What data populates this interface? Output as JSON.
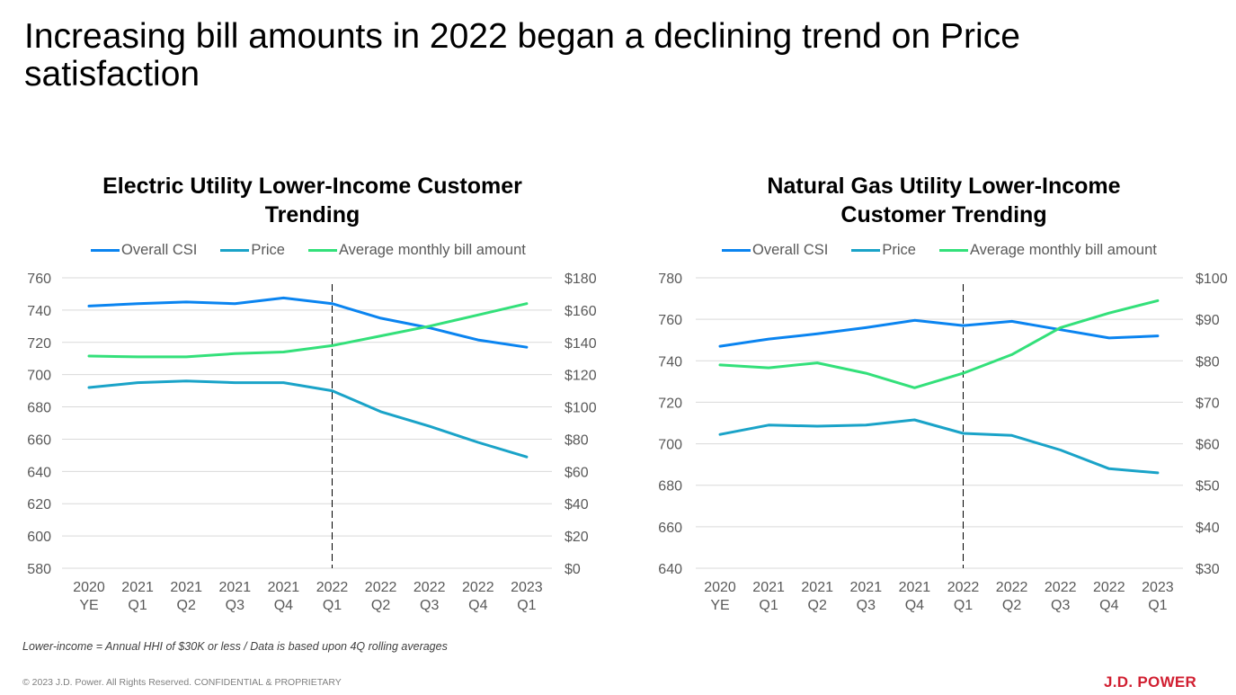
{
  "page": {
    "title": "Increasing bill amounts in 2022 began a declining trend on Price satisfaction",
    "footnote": "Lower-income = Annual HHI of $30K or less / Data is based upon 4Q rolling averages",
    "copyright": "© 2023 J.D. Power. All Rights Reserved. CONFIDENTIAL & PROPRIETARY",
    "logo": "J.D. POWER"
  },
  "colors": {
    "overall_csi": "#0a84f0",
    "price": "#1aa3c8",
    "bill": "#33e07a",
    "grid": "#d9d9d9",
    "logo": "#d11f31"
  },
  "chart_data": [
    {
      "type": "line",
      "title": "Electric Utility Lower-Income Customer Trending",
      "categories": [
        [
          "2020",
          "YE"
        ],
        [
          "2021",
          "Q1"
        ],
        [
          "2021",
          "Q2"
        ],
        [
          "2021",
          "Q3"
        ],
        [
          "2021",
          "Q4"
        ],
        [
          "2022",
          "Q1"
        ],
        [
          "2022",
          "Q2"
        ],
        [
          "2022",
          "Q3"
        ],
        [
          "2022",
          "Q4"
        ],
        [
          "2023",
          "Q1"
        ]
      ],
      "legend": [
        "Overall CSI",
        "Price",
        "Average monthly bill amount"
      ],
      "legend_position": "top",
      "y_left": {
        "min": 580,
        "max": 760,
        "step": 20,
        "ticks": [
          "580",
          "600",
          "620",
          "640",
          "660",
          "680",
          "700",
          "720",
          "740",
          "760"
        ]
      },
      "y_right": {
        "min": 0,
        "max": 180,
        "step": 20,
        "ticks": [
          "$0",
          "$20",
          "$40",
          "$60",
          "$80",
          "$100",
          "$120",
          "$140",
          "$160",
          "$180"
        ]
      },
      "grid": true,
      "reference_line": {
        "category_index": 5,
        "style": "dashed"
      },
      "series": [
        {
          "name": "Overall CSI",
          "axis": "left",
          "color_key": "overall_csi",
          "values": [
            742.5,
            744,
            745,
            744,
            747.5,
            744,
            735,
            729,
            721.5,
            717
          ]
        },
        {
          "name": "Price",
          "axis": "left",
          "color_key": "price",
          "values": [
            692,
            695,
            696,
            695,
            695,
            690,
            677,
            668,
            658,
            649
          ]
        },
        {
          "name": "Average monthly bill amount",
          "axis": "right",
          "color_key": "bill",
          "values": [
            131.5,
            131,
            131,
            133,
            134,
            138,
            144,
            150,
            157,
            164
          ]
        }
      ]
    },
    {
      "type": "line",
      "title": "Natural Gas Utility Lower-Income Customer Trending",
      "categories": [
        [
          "2020",
          "YE"
        ],
        [
          "2021",
          "Q1"
        ],
        [
          "2021",
          "Q2"
        ],
        [
          "2021",
          "Q3"
        ],
        [
          "2021",
          "Q4"
        ],
        [
          "2022",
          "Q1"
        ],
        [
          "2022",
          "Q2"
        ],
        [
          "2022",
          "Q3"
        ],
        [
          "2022",
          "Q4"
        ],
        [
          "2023",
          "Q1"
        ]
      ],
      "legend": [
        "Overall CSI",
        "Price",
        "Average monthly bill amount"
      ],
      "legend_position": "top",
      "y_left": {
        "min": 640,
        "max": 780,
        "step": 20,
        "ticks": [
          "640",
          "660",
          "680",
          "700",
          "720",
          "740",
          "760",
          "780"
        ]
      },
      "y_right": {
        "min": 30,
        "max": 100,
        "step": 10,
        "ticks": [
          "$30",
          "$40",
          "$50",
          "$60",
          "$70",
          "$80",
          "$90",
          "$100"
        ]
      },
      "grid": true,
      "reference_line": {
        "category_index": 5,
        "style": "dashed"
      },
      "series": [
        {
          "name": "Overall CSI",
          "axis": "left",
          "color_key": "overall_csi",
          "values": [
            747,
            750.5,
            753,
            756,
            759.5,
            757,
            759,
            755,
            751,
            752
          ]
        },
        {
          "name": "Price",
          "axis": "left",
          "color_key": "price",
          "values": [
            704.5,
            709,
            708.5,
            709,
            711.5,
            705,
            704,
            697,
            688,
            686
          ]
        },
        {
          "name": "Average monthly bill amount",
          "axis": "right",
          "color_key": "bill",
          "values": [
            79,
            78.3,
            79.5,
            77,
            73.5,
            77,
            81.5,
            88,
            91.5,
            94.5
          ]
        }
      ]
    }
  ]
}
